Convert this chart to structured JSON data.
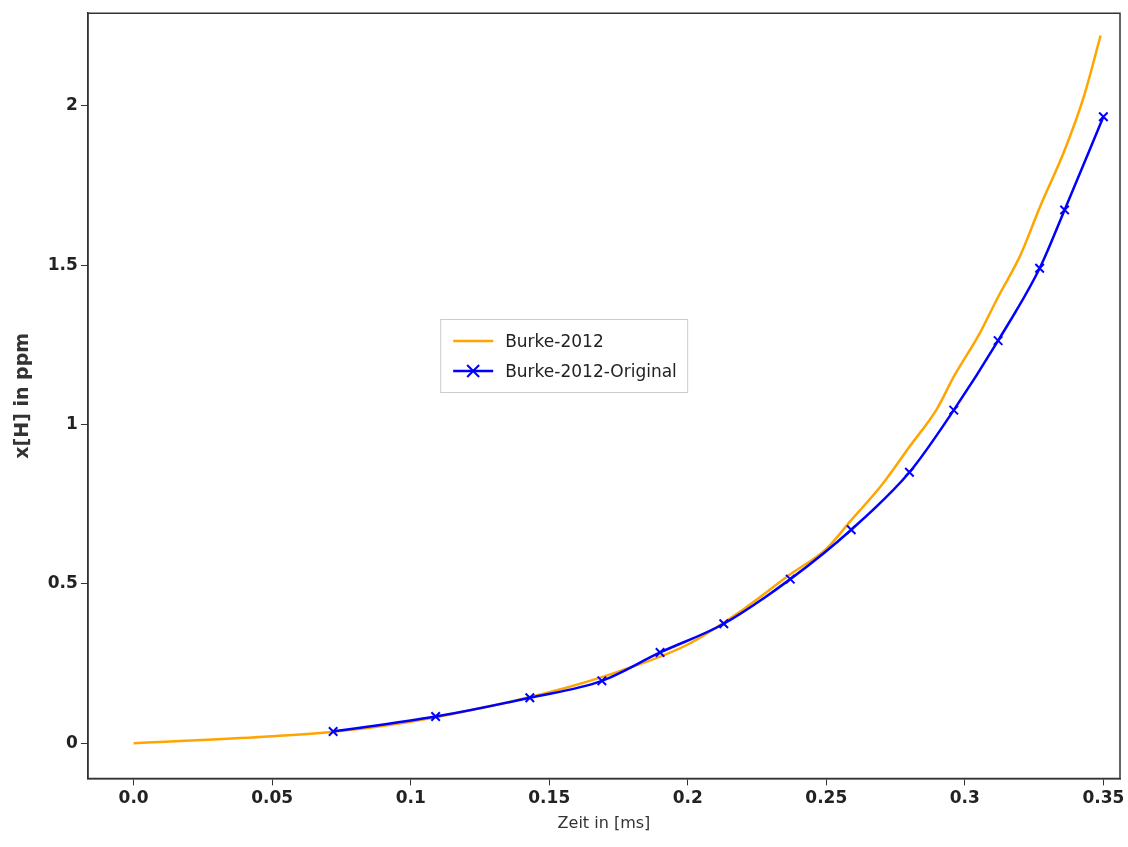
{
  "chart_data": {
    "type": "line",
    "xlabel": "Zeit in [ms]",
    "ylabel": "x[H] in ppm",
    "xlim": [
      -0.0165,
      0.356
    ],
    "ylim": [
      -0.11,
      2.29
    ],
    "xticks": [
      {
        "value": 0,
        "label": "0.0"
      },
      0.05,
      0.1,
      0.15,
      0.2,
      0.25,
      0.3,
      0.35
    ],
    "yticks": [
      0,
      0.5,
      1,
      1.5,
      2
    ],
    "grid": false,
    "legend": "center",
    "series": [
      {
        "name": "Burke-2012",
        "color": "#ffa500",
        "marker": "none",
        "x": [
          0,
          0.05,
          0.072,
          0.1,
          0.125,
          0.15,
          0.175,
          0.2,
          0.22,
          0.237,
          0.25,
          0.259,
          0.27,
          0.28,
          0.29,
          0.296,
          0.305,
          0.312,
          0.32,
          0.327,
          0.336,
          0.343,
          0.349
        ],
        "values": [
          0,
          0.022,
          0.036,
          0.068,
          0.11,
          0.16,
          0.225,
          0.31,
          0.42,
          0.53,
          0.61,
          0.7,
          0.81,
          0.93,
          1.05,
          1.15,
          1.28,
          1.4,
          1.53,
          1.68,
          1.86,
          2.03,
          2.22
        ]
      },
      {
        "name": "Burke-2012-Original",
        "color": "#0000ff",
        "marker": "cross",
        "x": [
          0.072,
          0.109,
          0.143,
          0.169,
          0.19,
          0.213,
          0.237,
          0.259,
          0.28,
          0.296,
          0.312,
          0.327,
          0.336,
          0.35
        ],
        "values": [
          0.037,
          0.084,
          0.143,
          0.196,
          0.285,
          0.375,
          0.515,
          0.67,
          0.85,
          1.045,
          1.263,
          1.49,
          1.673,
          1.965
        ]
      }
    ]
  }
}
